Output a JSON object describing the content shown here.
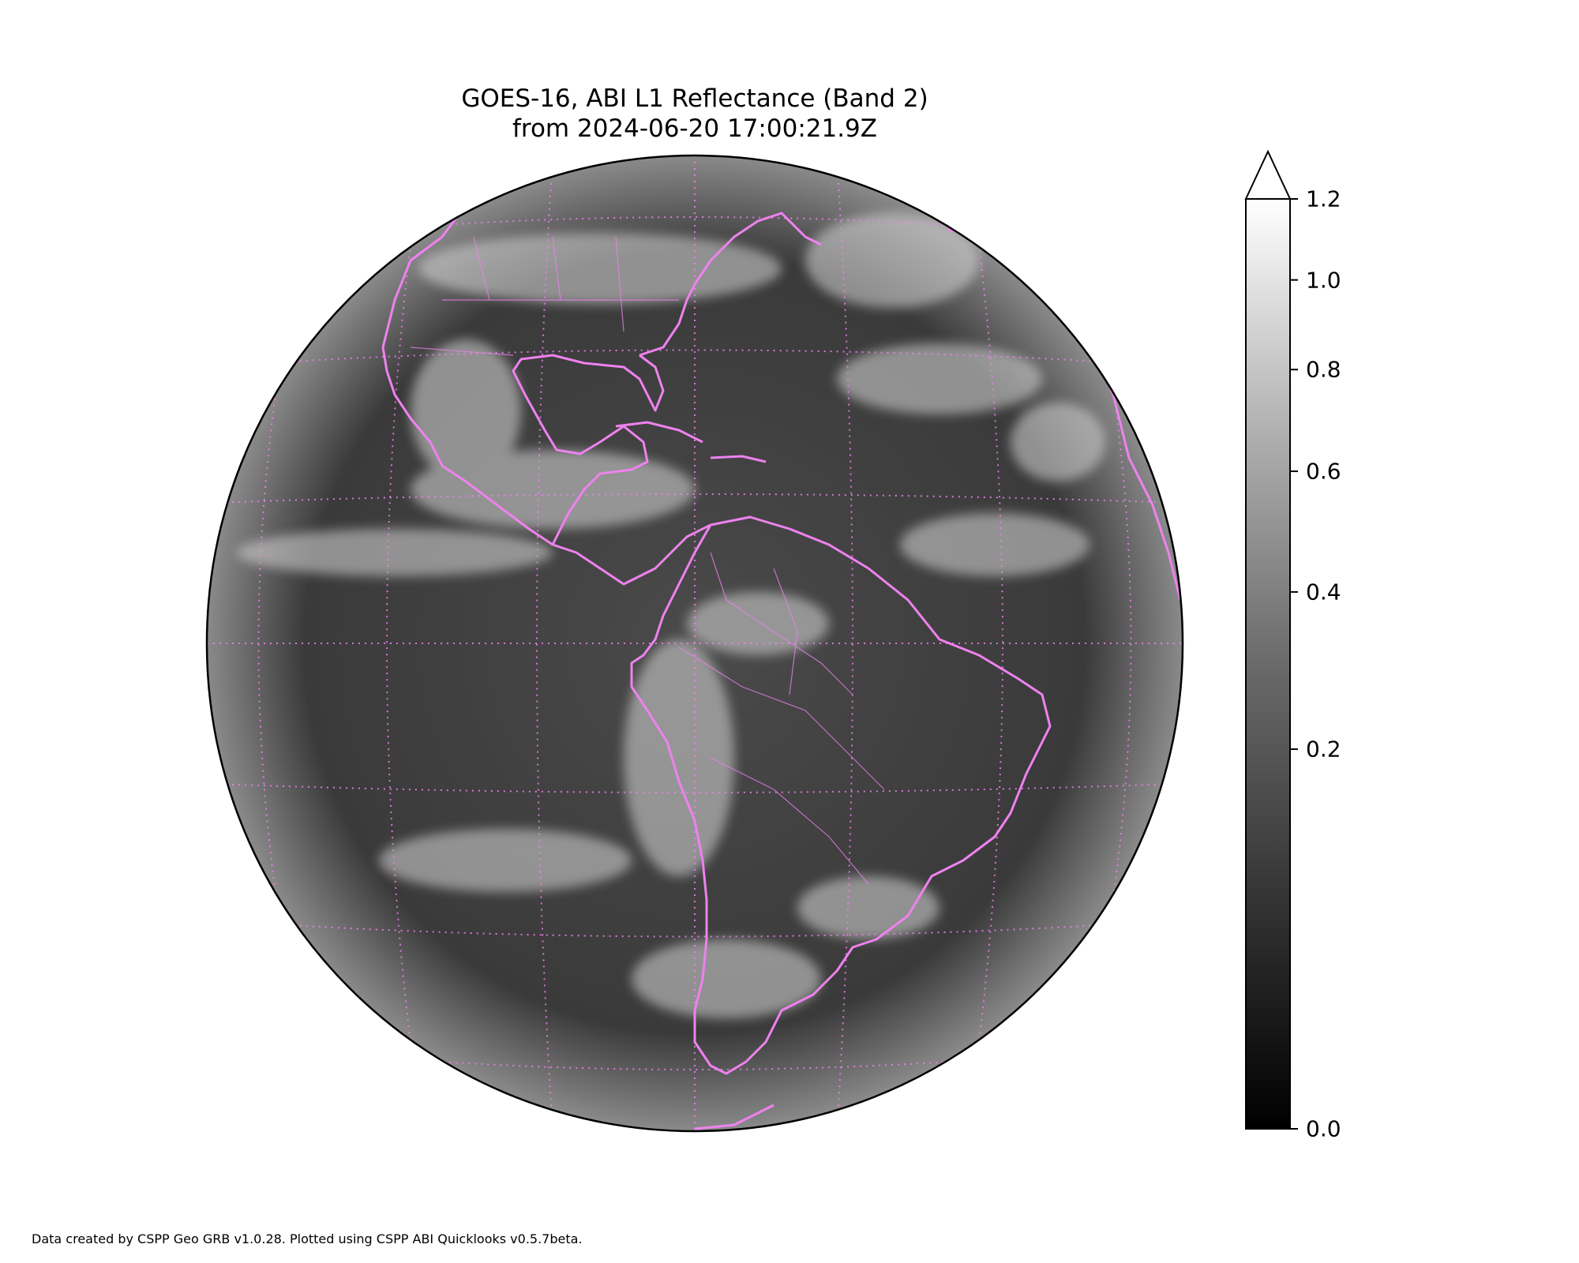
{
  "title": {
    "line1": "GOES-16, ABI L1 Reflectance (Band 2)",
    "line2": "from 2024-06-20 17:00:21.9Z"
  },
  "colorbar": {
    "ticks": [
      {
        "label": "1.2",
        "value": 1.2
      },
      {
        "label": "1.0",
        "value": 1.0
      },
      {
        "label": "0.8",
        "value": 0.8
      },
      {
        "label": "0.6",
        "value": 0.6
      },
      {
        "label": "0.4",
        "value": 0.4
      },
      {
        "label": "0.2",
        "value": 0.2
      },
      {
        "label": "0.0",
        "value": 0.0
      }
    ],
    "range": [
      0.0,
      1.2
    ],
    "extend": "max",
    "scale": "sqrt"
  },
  "colors": {
    "coastline": "#ee82ee",
    "background": "#ffffff"
  },
  "footer": "Data created by CSPP Geo GRB v1.0.28. Plotted using CSPP ABI Quicklooks v0.5.7beta."
}
